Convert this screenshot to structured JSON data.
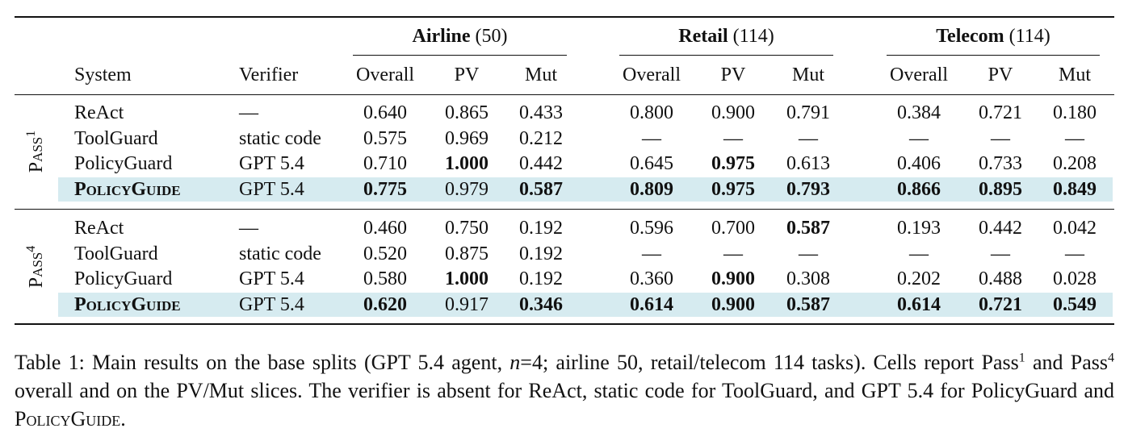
{
  "table": {
    "headers": {
      "system": "System",
      "verifier": "Verifier"
    },
    "groups": [
      {
        "name": "Airline",
        "count": "(50)",
        "columns": [
          "Overall",
          "PV",
          "Mut"
        ]
      },
      {
        "name": "Retail",
        "count": "(114)",
        "columns": [
          "Overall",
          "PV",
          "Mut"
        ]
      },
      {
        "name": "Telecom",
        "count": "(114)",
        "columns": [
          "Overall",
          "PV",
          "Mut"
        ]
      }
    ],
    "sections": [
      {
        "label": "Pass",
        "sup": "1",
        "rows": [
          {
            "system": "ReAct",
            "verifier": "—",
            "values": [
              "0.640",
              "0.865",
              "0.433",
              "0.800",
              "0.900",
              "0.791",
              "0.384",
              "0.721",
              "0.180"
            ],
            "bold": []
          },
          {
            "system": "ToolGuard",
            "verifier": "static code",
            "values": [
              "0.575",
              "0.969",
              "0.212",
              "—",
              "—",
              "—",
              "—",
              "—",
              "—"
            ],
            "bold": []
          },
          {
            "system": "PolicyGuard",
            "verifier": "GPT 5.4",
            "values": [
              "0.710",
              "1.000",
              "0.442",
              "0.645",
              "0.975",
              "0.613",
              "0.406",
              "0.733",
              "0.208"
            ],
            "bold": [
              1,
              4
            ]
          },
          {
            "system": "PolicyGuide",
            "verifier": "GPT 5.4",
            "values": [
              "0.775",
              "0.979",
              "0.587",
              "0.809",
              "0.975",
              "0.793",
              "0.866",
              "0.895",
              "0.849"
            ],
            "bold": [
              0,
              2,
              3,
              4,
              5,
              6,
              7,
              8
            ],
            "highlight": true
          }
        ]
      },
      {
        "label": "Pass",
        "sup": "4",
        "rows": [
          {
            "system": "ReAct",
            "verifier": "—",
            "values": [
              "0.460",
              "0.750",
              "0.192",
              "0.596",
              "0.700",
              "0.587",
              "0.193",
              "0.442",
              "0.042"
            ],
            "bold": [
              5
            ]
          },
          {
            "system": "ToolGuard",
            "verifier": "static code",
            "values": [
              "0.520",
              "0.875",
              "0.192",
              "—",
              "—",
              "—",
              "—",
              "—",
              "—"
            ],
            "bold": []
          },
          {
            "system": "PolicyGuard",
            "verifier": "GPT 5.4",
            "values": [
              "0.580",
              "1.000",
              "0.192",
              "0.360",
              "0.900",
              "0.308",
              "0.202",
              "0.488",
              "0.028"
            ],
            "bold": [
              1,
              4
            ]
          },
          {
            "system": "PolicyGuide",
            "verifier": "GPT 5.4",
            "values": [
              "0.620",
              "0.917",
              "0.346",
              "0.614",
              "0.900",
              "0.587",
              "0.614",
              "0.721",
              "0.549"
            ],
            "bold": [
              0,
              2,
              3,
              4,
              5,
              6,
              7,
              8
            ],
            "highlight": true
          }
        ]
      }
    ]
  },
  "caption": [
    "Table 1: Main results on the base splits (GPT 5.4 agent, ",
    "n",
    "=4; airline 50, retail/telecom 114 tasks). Cells report Pass",
    "1",
    " and Pass",
    "4",
    " overall and on the PV/Mut slices. The verifier is absent for ReAct, static code for ToolGuard, and GPT 5.4 for PolicyGuard and ",
    "PolicyGuide",
    "."
  ]
}
